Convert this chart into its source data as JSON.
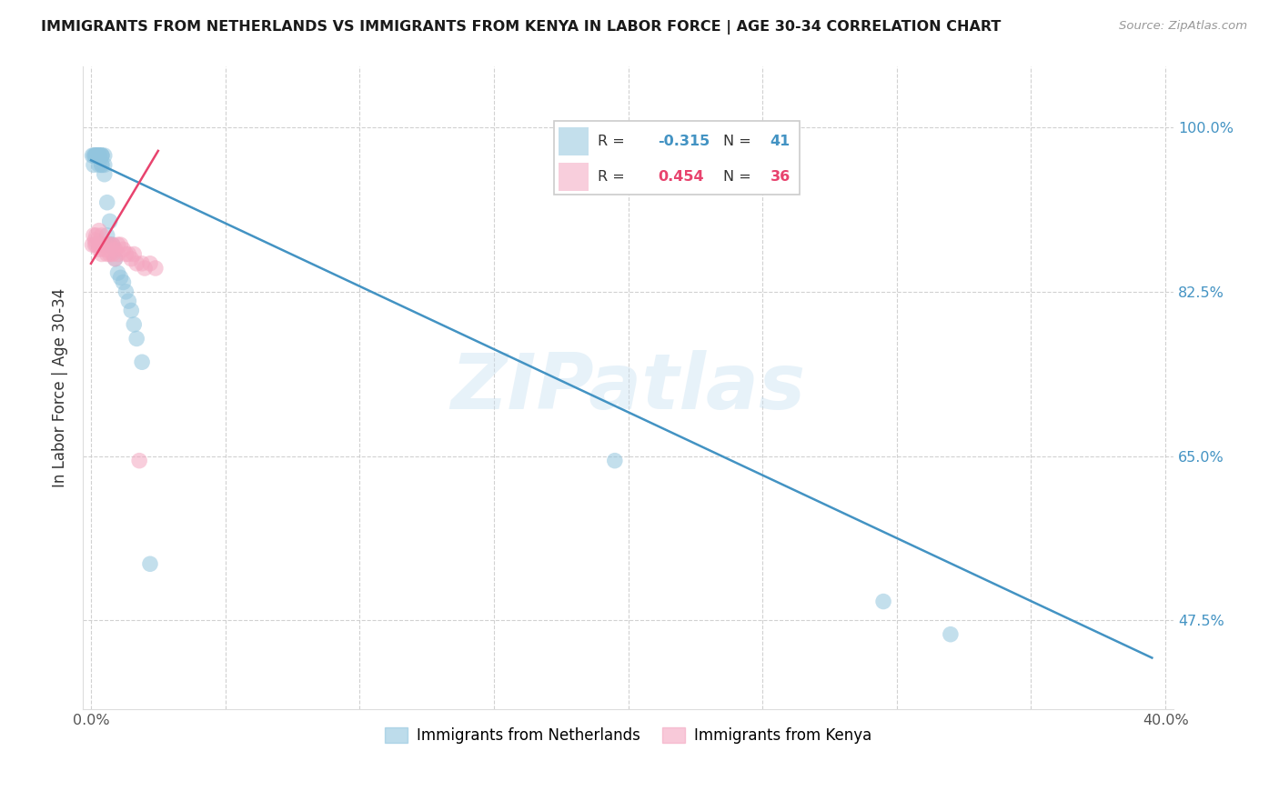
{
  "title": "IMMIGRANTS FROM NETHERLANDS VS IMMIGRANTS FROM KENYA IN LABOR FORCE | AGE 30-34 CORRELATION CHART",
  "source": "Source: ZipAtlas.com",
  "ylabel": "In Labor Force | Age 30-34",
  "watermark": "ZIPatlas",
  "netherlands_color": "#92c5de",
  "kenya_color": "#f4a6c0",
  "netherlands_line_color": "#4393c3",
  "kenya_line_color": "#e8436e",
  "legend_R_nl": "-0.315",
  "legend_N_nl": "41",
  "legend_R_ke": "0.454",
  "legend_N_ke": "36",
  "xlim": [
    -0.003,
    0.403
  ],
  "ylim": [
    0.38,
    1.065
  ],
  "yticks": [
    0.475,
    0.65,
    0.825,
    1.0
  ],
  "ytick_labels": [
    "47.5%",
    "65.0%",
    "82.5%",
    "100.0%"
  ],
  "xticks": [
    0.0,
    0.05,
    0.1,
    0.15,
    0.2,
    0.25,
    0.3,
    0.35,
    0.4
  ],
  "xtick_labels": [
    "0.0%",
    "",
    "",
    "",
    "",
    "",
    "",
    "",
    "40.0%"
  ],
  "nl_x": [
    0.0005,
    0.001,
    0.001,
    0.0015,
    0.0015,
    0.002,
    0.002,
    0.002,
    0.0025,
    0.003,
    0.003,
    0.003,
    0.003,
    0.003,
    0.004,
    0.004,
    0.004,
    0.004,
    0.004,
    0.005,
    0.005,
    0.005,
    0.006,
    0.006,
    0.007,
    0.007,
    0.008,
    0.009,
    0.01,
    0.011,
    0.012,
    0.013,
    0.014,
    0.015,
    0.016,
    0.017,
    0.019,
    0.022,
    0.195,
    0.295,
    0.32
  ],
  "nl_y": [
    0.97,
    0.97,
    0.96,
    0.97,
    0.97,
    0.97,
    0.97,
    0.97,
    0.97,
    0.97,
    0.97,
    0.97,
    0.97,
    0.96,
    0.97,
    0.97,
    0.96,
    0.97,
    0.96,
    0.97,
    0.96,
    0.95,
    0.92,
    0.885,
    0.9,
    0.875,
    0.875,
    0.86,
    0.845,
    0.84,
    0.835,
    0.825,
    0.815,
    0.805,
    0.79,
    0.775,
    0.75,
    0.535,
    0.645,
    0.495,
    0.46
  ],
  "ke_x": [
    0.0005,
    0.001,
    0.0015,
    0.0015,
    0.002,
    0.002,
    0.003,
    0.003,
    0.003,
    0.004,
    0.004,
    0.004,
    0.005,
    0.005,
    0.006,
    0.006,
    0.007,
    0.007,
    0.008,
    0.008,
    0.009,
    0.009,
    0.01,
    0.01,
    0.011,
    0.012,
    0.013,
    0.014,
    0.015,
    0.016,
    0.017,
    0.018,
    0.019,
    0.02,
    0.022,
    0.024
  ],
  "ke_y": [
    0.875,
    0.885,
    0.88,
    0.875,
    0.885,
    0.875,
    0.89,
    0.875,
    0.87,
    0.885,
    0.875,
    0.865,
    0.875,
    0.87,
    0.875,
    0.865,
    0.875,
    0.865,
    0.875,
    0.865,
    0.87,
    0.86,
    0.875,
    0.865,
    0.875,
    0.87,
    0.865,
    0.865,
    0.86,
    0.865,
    0.855,
    0.645,
    0.855,
    0.85,
    0.855,
    0.85
  ],
  "nl_line_x": [
    0.0,
    0.395
  ],
  "nl_line_y": [
    0.965,
    0.435
  ],
  "ke_line_x": [
    0.0,
    0.025
  ],
  "ke_line_y": [
    0.855,
    0.975
  ]
}
